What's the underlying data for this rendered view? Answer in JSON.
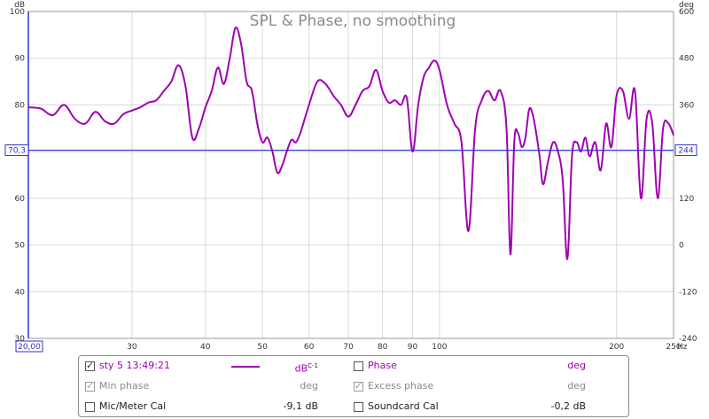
{
  "chart_data": {
    "type": "line",
    "title": "SPL & Phase, no smoothing",
    "xlabel": "Hz",
    "ylabel_left": "dB",
    "ylabel_right": "deg",
    "x_scale": "log",
    "xlim": [
      20,
      250
    ],
    "ylim": [
      30,
      100
    ],
    "ylim_right": [
      -240,
      600
    ],
    "x_tick_labels": [
      "30",
      "40",
      "50",
      "60",
      "70",
      "80",
      "90",
      "100",
      "200",
      "250"
    ],
    "x_tick_values": [
      30,
      40,
      50,
      60,
      70,
      80,
      90,
      100,
      200,
      250
    ],
    "x_start_label": "20,00",
    "y_tick_values": [
      30,
      40,
      50,
      60,
      70,
      80,
      90,
      100
    ],
    "y_tick_labels_right": [
      "-240",
      "-120",
      "0",
      "120",
      "244",
      "360",
      "480",
      "600"
    ],
    "y_tick_values_right": [
      -240,
      -120,
      0,
      120,
      360,
      480,
      600
    ],
    "cursor_level_left": "70,3",
    "cursor_level_right": "244",
    "cursor_value": 70.3,
    "grid": true,
    "colors": {
      "series": "#a000b0",
      "cursor": "#3333cc",
      "grid": "#d8d8d8"
    },
    "series": [
      {
        "name": "sty 5 13:49:21",
        "x": [
          20,
          21,
          22,
          23,
          24,
          25,
          26,
          27,
          28,
          29,
          30,
          31,
          32,
          33,
          34,
          35,
          36,
          37,
          38,
          39,
          40,
          41,
          42,
          43,
          44,
          45,
          46,
          47,
          48,
          49,
          50,
          51,
          52,
          53,
          54,
          55,
          56,
          57,
          58,
          59,
          60,
          62,
          64,
          66,
          68,
          70,
          72,
          74,
          76,
          78,
          80,
          82,
          84,
          86,
          88,
          90,
          92,
          94,
          96,
          98,
          100,
          103,
          106,
          109,
          112,
          115,
          118,
          121,
          124,
          127,
          130,
          132,
          134,
          136,
          138,
          140,
          142,
          144,
          146,
          148,
          150,
          153,
          156,
          159,
          162,
          165,
          168,
          171,
          174,
          177,
          180,
          184,
          188,
          192,
          196,
          200,
          205,
          210,
          215,
          220,
          225,
          230,
          235,
          240,
          245,
          250
        ],
        "y": [
          79.5,
          79.2,
          77.8,
          80.0,
          77.0,
          76.0,
          78.5,
          76.5,
          76.0,
          78.0,
          78.8,
          79.5,
          80.5,
          81.0,
          83.0,
          85.0,
          88.5,
          84.0,
          73.0,
          75.0,
          79.5,
          83.0,
          88.0,
          84.5,
          90.0,
          96.5,
          93.0,
          85.0,
          83.0,
          76.0,
          72.0,
          73.0,
          70.0,
          65.5,
          67.0,
          70.0,
          72.5,
          72.0,
          74.0,
          77.0,
          80.0,
          85.0,
          84.5,
          82.0,
          80.0,
          77.5,
          80.0,
          83.0,
          84.0,
          87.5,
          83.0,
          80.5,
          81.0,
          80.0,
          81.5,
          70.0,
          80.0,
          86.0,
          88.0,
          89.5,
          87.5,
          80.0,
          76.0,
          72.0,
          53.0,
          75.0,
          81.0,
          83.0,
          81.0,
          83.0,
          75.0,
          48.0,
          72.0,
          74.0,
          71.0,
          73.0,
          79.0,
          78.0,
          74.0,
          69.0,
          63.0,
          68.0,
          72.0,
          70.0,
          64.0,
          47.0,
          69.0,
          72.0,
          70.0,
          73.0,
          69.0,
          72.0,
          66.0,
          76.0,
          71.0,
          82.0,
          83.0,
          77.0,
          83.0,
          60.0,
          77.0,
          76.0,
          60.0,
          75.0,
          76.0,
          73.5
        ]
      }
    ]
  },
  "legend": {
    "row1": {
      "series_label": "sty 5 13:49:21",
      "unit": "dB",
      "unit_sup": "C-1",
      "phase_label": "Phase",
      "phase_unit": "deg"
    },
    "row2": {
      "min_phase_label": "Min phase",
      "min_phase_unit": "deg",
      "excess_phase_label": "Excess phase",
      "excess_phase_unit": "deg"
    },
    "row3": {
      "mic_label": "Mic/Meter Cal",
      "mic_value": "-9,1 dB",
      "soundcard_label": "Soundcard Cal",
      "soundcard_value": "-0,2 dB"
    }
  }
}
